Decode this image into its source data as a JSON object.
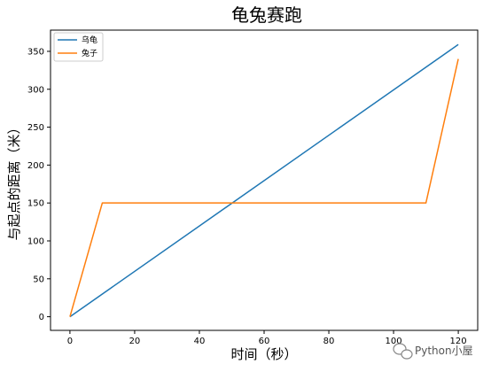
{
  "chart_data": {
    "type": "line",
    "title": "龟兔赛跑",
    "xlabel": "时间（秒）",
    "ylabel": "与起点的距离（米）",
    "xlim": [
      -6,
      126
    ],
    "ylim": [
      -18,
      378
    ],
    "xticks": [
      0,
      20,
      40,
      60,
      80,
      100,
      120
    ],
    "yticks": [
      0,
      50,
      100,
      150,
      200,
      250,
      300,
      350
    ],
    "grid": false,
    "legend_position": "top-left",
    "series": [
      {
        "name": "乌龟",
        "color": "#1f77b4",
        "x": [
          0,
          120
        ],
        "y": [
          0,
          359
        ]
      },
      {
        "name": "兔子",
        "color": "#ff7f0e",
        "x": [
          0,
          10,
          110,
          120
        ],
        "y": [
          0,
          150,
          150,
          340
        ]
      }
    ]
  },
  "watermark": {
    "text": "Python小屋",
    "icon": "wechat-icon"
  }
}
